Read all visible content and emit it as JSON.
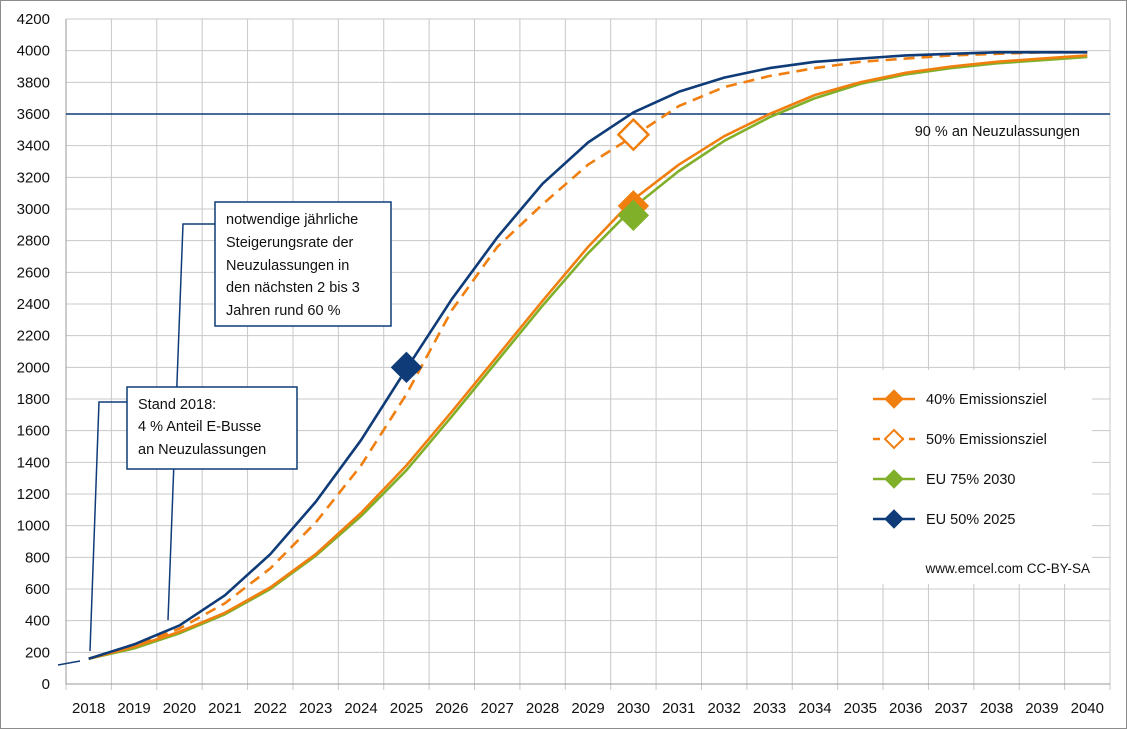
{
  "chart_data": {
    "type": "line",
    "x": [
      2018,
      2019,
      2020,
      2021,
      2022,
      2023,
      2024,
      2025,
      2026,
      2027,
      2028,
      2029,
      2030,
      2031,
      2032,
      2033,
      2034,
      2035,
      2036,
      2037,
      2038,
      2039,
      2040
    ],
    "ylim": [
      0,
      4200
    ],
    "yticks": [
      0,
      200,
      400,
      600,
      800,
      1000,
      1200,
      1400,
      1600,
      1800,
      2000,
      2200,
      2400,
      2600,
      2800,
      3000,
      3200,
      3400,
      3600,
      3800,
      4000,
      4200
    ],
    "grid": true,
    "series": [
      {
        "name": "40% Emissionsziel",
        "color": "#f07f10",
        "dash": false,
        "marker": "filled-diamond",
        "values": [
          160,
          235,
          330,
          450,
          610,
          820,
          1080,
          1380,
          1720,
          2070,
          2420,
          2760,
          3060,
          3280,
          3460,
          3600,
          3720,
          3800,
          3860,
          3900,
          3930,
          3950,
          3970
        ]
      },
      {
        "name": "50% Emissionsziel",
        "color": "#f07f10",
        "dash": true,
        "marker": "hollow-diamond",
        "values": [
          160,
          240,
          350,
          510,
          730,
          1020,
          1380,
          1830,
          2360,
          2760,
          3030,
          3280,
          3460,
          3650,
          3770,
          3840,
          3890,
          3930,
          3950,
          3970,
          3980,
          3990,
          3990
        ]
      },
      {
        "name": "EU 75% 2030",
        "color": "#80b02a",
        "dash": false,
        "marker": "filled-diamond",
        "values": [
          160,
          225,
          320,
          440,
          600,
          810,
          1060,
          1350,
          1690,
          2040,
          2390,
          2720,
          3010,
          3240,
          3430,
          3580,
          3700,
          3790,
          3850,
          3890,
          3920,
          3940,
          3960
        ]
      },
      {
        "name": "EU 50% 2025",
        "color": "#0f3c78",
        "dash": false,
        "marker": "filled-diamond",
        "values": [
          160,
          250,
          370,
          560,
          820,
          1150,
          1540,
          1990,
          2430,
          2820,
          3160,
          3420,
          3610,
          3740,
          3830,
          3890,
          3930,
          3950,
          3970,
          3980,
          3990,
          3990,
          3990
        ]
      }
    ],
    "markers": [
      {
        "series": "EU 50% 2025",
        "x": 2025,
        "y": 2000
      },
      {
        "series": "40% Emissionsziel",
        "x": 2030,
        "y": 3020
      },
      {
        "series": "EU 75% 2030",
        "x": 2030,
        "y": 2960
      },
      {
        "series": "50% Emissionsziel",
        "x": 2030,
        "y": 3470
      }
    ],
    "reference_line": {
      "y": 3600,
      "label": "90 % an Neuzulassungen",
      "color": "#0f3c78"
    },
    "annotations": [
      {
        "name": "stand-2018",
        "lines": [
          "Stand 2018:",
          "4 % Anteil E-Busse",
          "an Neuzulassungen"
        ]
      },
      {
        "name": "steigerungsrate",
        "lines": [
          "notwendige jährliche",
          "Steigerungsrate  der",
          "Neuzulassungen  in",
          "den nächsten 2 bis 3",
          "Jahren rund 60 %"
        ]
      }
    ],
    "legend": {
      "placement": "right",
      "entries": [
        "40% Emissionsziel",
        "50% Emissionsziel",
        "EU 75% 2030",
        "EU 50% 2025"
      ]
    },
    "credit": "www.emcel.com CC-BY-SA"
  }
}
